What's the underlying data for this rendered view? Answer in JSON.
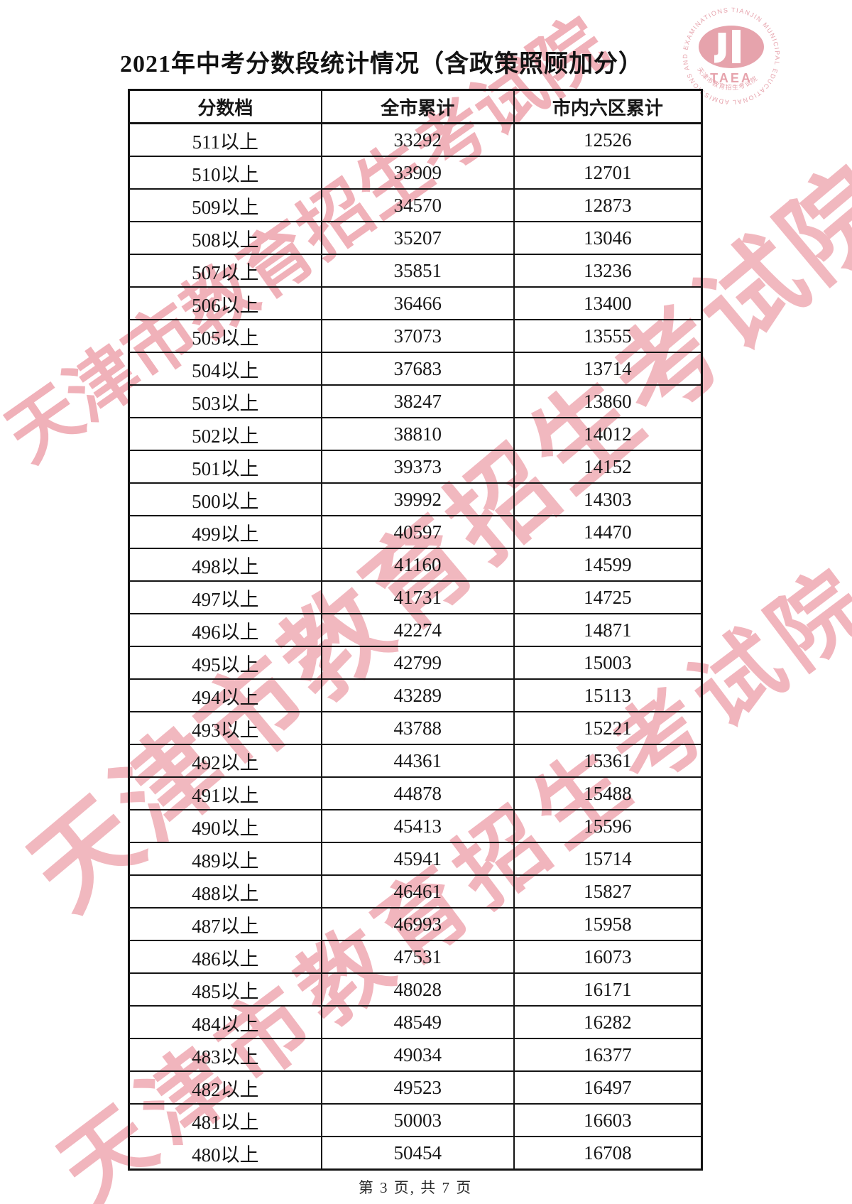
{
  "page": {
    "title": "2021年中考分数段统计情况（含政策照顾加分）",
    "footer": "第 3 页, 共 7 页"
  },
  "table": {
    "headers": [
      "分数档",
      "全市累计",
      "市内六区累计"
    ],
    "rows": [
      [
        "511以上",
        "33292",
        "12526"
      ],
      [
        "510以上",
        "33909",
        "12701"
      ],
      [
        "509以上",
        "34570",
        "12873"
      ],
      [
        "508以上",
        "35207",
        "13046"
      ],
      [
        "507以上",
        "35851",
        "13236"
      ],
      [
        "506以上",
        "36466",
        "13400"
      ],
      [
        "505以上",
        "37073",
        "13555"
      ],
      [
        "504以上",
        "37683",
        "13714"
      ],
      [
        "503以上",
        "38247",
        "13860"
      ],
      [
        "502以上",
        "38810",
        "14012"
      ],
      [
        "501以上",
        "39373",
        "14152"
      ],
      [
        "500以上",
        "39992",
        "14303"
      ],
      [
        "499以上",
        "40597",
        "14470"
      ],
      [
        "498以上",
        "41160",
        "14599"
      ],
      [
        "497以上",
        "41731",
        "14725"
      ],
      [
        "496以上",
        "42274",
        "14871"
      ],
      [
        "495以上",
        "42799",
        "15003"
      ],
      [
        "494以上",
        "43289",
        "15113"
      ],
      [
        "493以上",
        "43788",
        "15221"
      ],
      [
        "492以上",
        "44361",
        "15361"
      ],
      [
        "491以上",
        "44878",
        "15488"
      ],
      [
        "490以上",
        "45413",
        "15596"
      ],
      [
        "489以上",
        "45941",
        "15714"
      ],
      [
        "488以上",
        "46461",
        "15827"
      ],
      [
        "487以上",
        "46993",
        "15958"
      ],
      [
        "486以上",
        "47531",
        "16073"
      ],
      [
        "485以上",
        "48028",
        "16171"
      ],
      [
        "484以上",
        "48549",
        "16282"
      ],
      [
        "483以上",
        "49034",
        "16377"
      ],
      [
        "482以上",
        "49523",
        "16497"
      ],
      [
        "481以上",
        "50003",
        "16603"
      ],
      [
        "480以上",
        "50454",
        "16708"
      ]
    ]
  },
  "watermark": {
    "text": "天津市教育招生考试院",
    "color": "#eda0aa"
  },
  "logo": {
    "abbr": "TAEA",
    "ring_text": "TIANJIN MUNICIPAL EDUCATIONAL ADMISSIONS AND EXAMINATIONS AUTHORITY",
    "cn_text": "天津市教育招生考试院"
  }
}
